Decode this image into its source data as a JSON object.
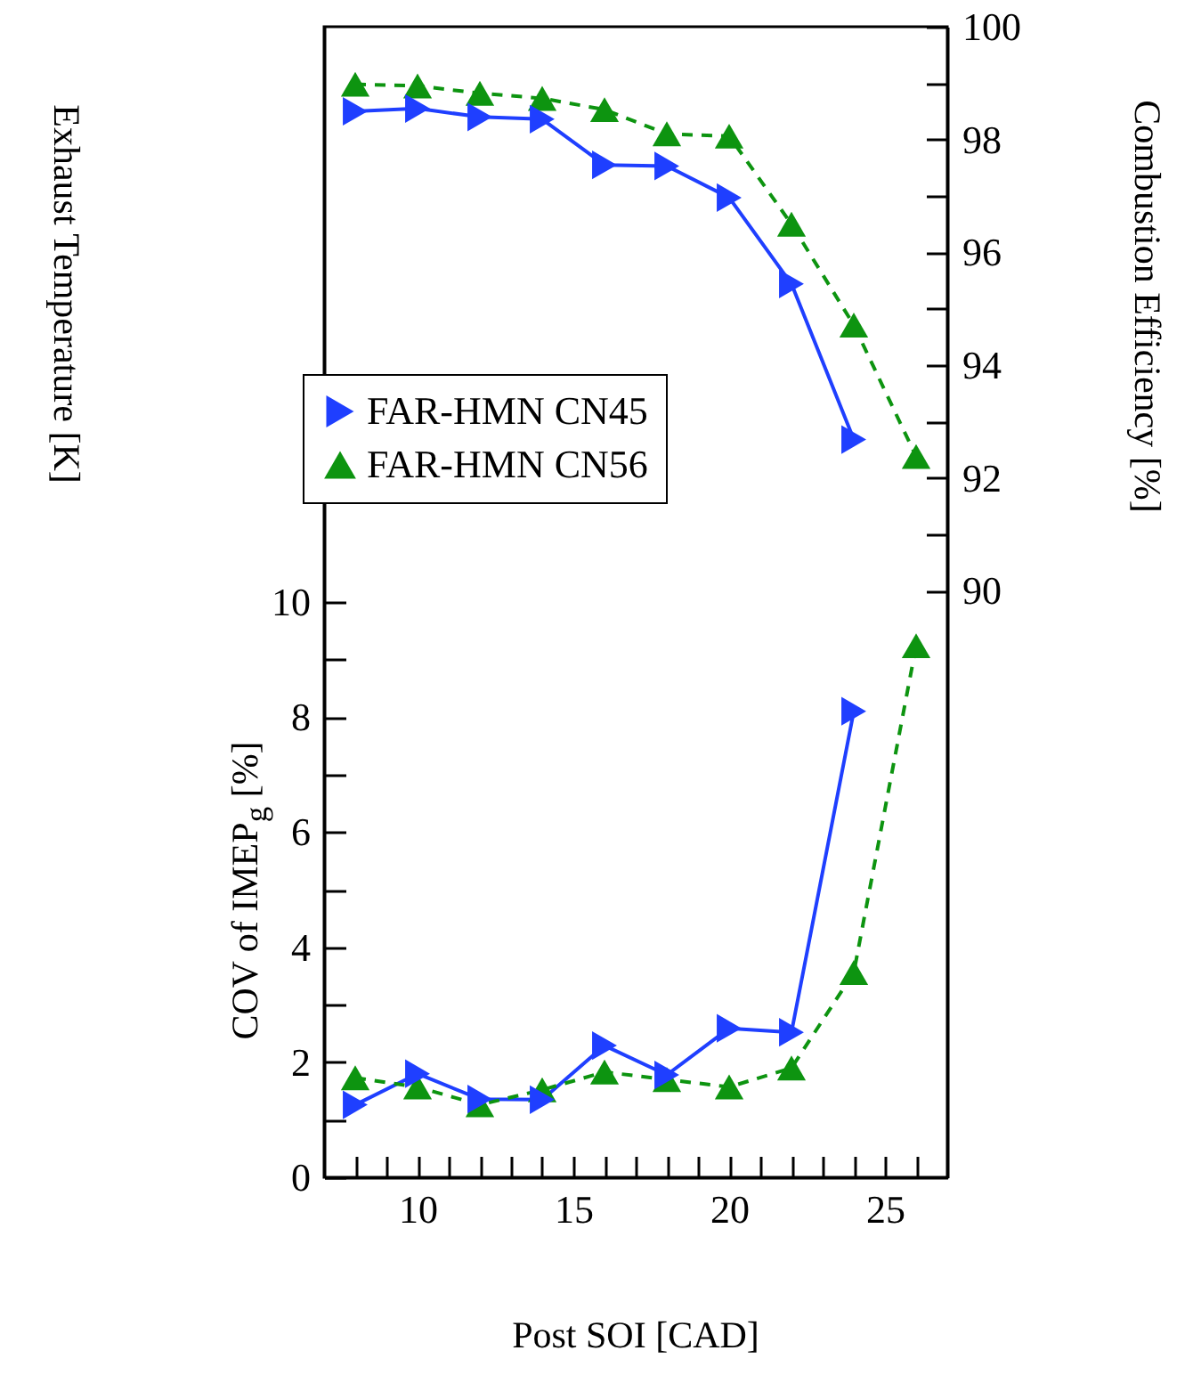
{
  "chart_data": {
    "type": "line",
    "xlabel": "Post SOI [CAD]",
    "ylabel": "COV of IMEP$_{g}$ [%]",
    "y2label": "Combustion Efficiency [%]",
    "annotations": [
      "Exhaust Temperature [K]"
    ],
    "x": [
      8,
      10,
      12,
      14,
      16,
      18,
      20,
      22,
      24,
      26
    ],
    "xlim": [
      7,
      27
    ],
    "xticks": [
      {
        "value": 8,
        "label": null
      },
      {
        "value": 9,
        "label": null
      },
      10,
      {
        "value": 11,
        "label": null
      },
      {
        "value": 12,
        "label": null
      },
      {
        "value": 13,
        "label": null
      },
      {
        "value": 14,
        "label": null
      },
      15,
      {
        "value": 16,
        "label": null
      },
      {
        "value": 17,
        "label": null
      },
      {
        "value": 18,
        "label": null
      },
      {
        "value": 19,
        "label": null
      },
      20,
      {
        "value": 21,
        "label": null
      },
      {
        "value": 22,
        "label": null
      },
      {
        "value": 23,
        "label": null
      },
      {
        "value": 24,
        "label": null
      },
      25,
      {
        "value": 26,
        "label": null
      }
    ],
    "ylim": [
      0,
      20
    ],
    "yticks": [
      0,
      {
        "value": 1,
        "label": null
      },
      2,
      {
        "value": 3,
        "label": null
      },
      4,
      {
        "value": 5,
        "label": null
      },
      6,
      {
        "value": 7,
        "label": null
      },
      8,
      {
        "value": 9,
        "label": null
      },
      10
    ],
    "y2lim": [
      79.6,
      100
    ],
    "y2ticks": [
      90,
      {
        "value": 91,
        "label": null
      },
      92,
      {
        "value": 93,
        "label": null
      },
      94,
      {
        "value": 95,
        "label": null
      },
      96,
      {
        "value": 97,
        "label": null
      },
      98,
      {
        "value": 99,
        "label": null
      },
      100
    ],
    "legend": "left",
    "grid": false,
    "series": [
      {
        "name": "FAR-HMN CN45",
        "color": "#1f3fff",
        "axis": "y2",
        "marker": "triangle-right",
        "line_style": "solid",
        "values": [
          98.5,
          98.55,
          98.4,
          98.36,
          97.55,
          97.53,
          96.97,
          95.44,
          92.68,
          null
        ]
      },
      {
        "name": "FAR-HMN CN56",
        "color": "#0d9410",
        "axis": "y2",
        "marker": "triangle",
        "line_style": "dashed",
        "values": [
          98.98,
          98.95,
          98.82,
          98.73,
          98.53,
          98.1,
          98.06,
          96.5,
          94.71,
          92.38
        ]
      },
      {
        "color": "#1f3fff",
        "axis": "y",
        "marker": "triangle-right",
        "line_style": "solid",
        "values": [
          1.26,
          1.8,
          1.36,
          1.35,
          2.29,
          1.78,
          2.59,
          2.52,
          8.1,
          null
        ]
      },
      {
        "color": "#0d9410",
        "axis": "y",
        "marker": "triangle",
        "line_style": "dashed",
        "values": [
          1.73,
          1.57,
          1.26,
          1.52,
          1.83,
          1.7,
          1.57,
          1.9,
          3.56,
          9.24
        ]
      }
    ]
  }
}
